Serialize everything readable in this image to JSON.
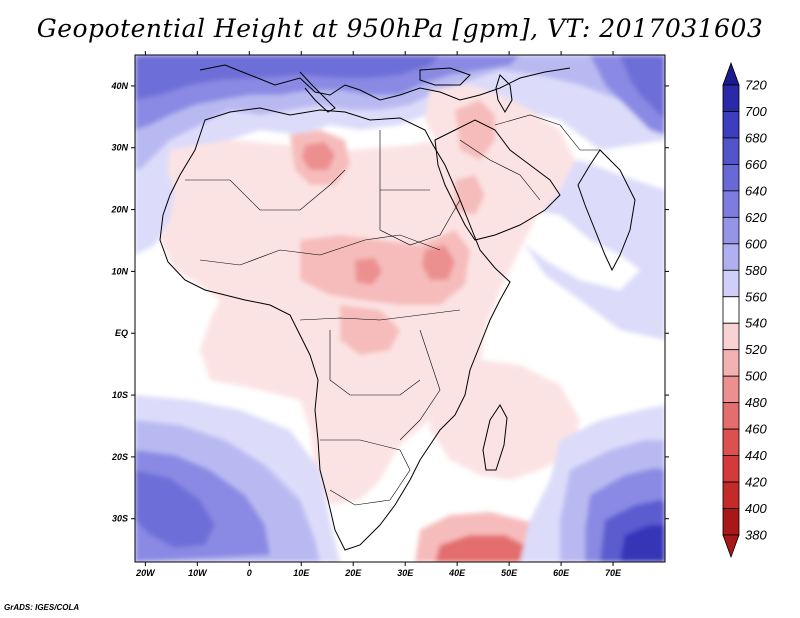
{
  "title": "Geopotential Height at 950hPa [gpm], VT: 2017031603",
  "credit": "GrADS: IGES/COLA",
  "map": {
    "region": "Africa and Arabian Peninsula",
    "variable": "Geopotential Height",
    "level": "950hPa",
    "units": "gpm",
    "valid_time": "2017031603",
    "lon_range": [
      -22,
      80
    ],
    "lat_range": [
      -37,
      45
    ],
    "lon_ticks": [
      "20W",
      "10W",
      "0",
      "10E",
      "20E",
      "30E",
      "40E",
      "50E",
      "60E",
      "70E"
    ],
    "lon_tick_values": [
      -20,
      -10,
      0,
      10,
      20,
      30,
      40,
      50,
      60,
      70
    ],
    "lat_ticks": [
      "40N",
      "30N",
      "20N",
      "10N",
      "EQ",
      "10S",
      "20S",
      "30S"
    ],
    "lat_tick_values": [
      40,
      30,
      20,
      10,
      0,
      -10,
      -20,
      -30
    ]
  },
  "colorbar": {
    "levels": [
      720,
      700,
      680,
      660,
      640,
      620,
      600,
      580,
      560,
      540,
      520,
      500,
      480,
      460,
      440,
      420,
      400,
      380
    ],
    "colors": [
      "#1b1b8f",
      "#2a2aa8",
      "#3d3dbf",
      "#5353cc",
      "#6868d6",
      "#7d7de0",
      "#9595e8",
      "#b0b0f0",
      "#cfcff7",
      "#ffffff",
      "#f9d3d3",
      "#f3b2b2",
      "#ec8f8f",
      "#e46e6e",
      "#dc5050",
      "#d43a3a",
      "#c42a2a",
      "#a81818"
    ],
    "orientation": "vertical",
    "placement": "right"
  },
  "colors": {
    "land_pink_light": "#fce3e3",
    "pink_mid": "#f6bcbc",
    "red_core": "#e97c7c",
    "lavender": "#dcdcfa",
    "blue_light": "#b9b9f2",
    "blue_mid": "#8a8ae4",
    "blue_dark": "#5c5cd0",
    "blue_deepest": "#3434b8"
  }
}
